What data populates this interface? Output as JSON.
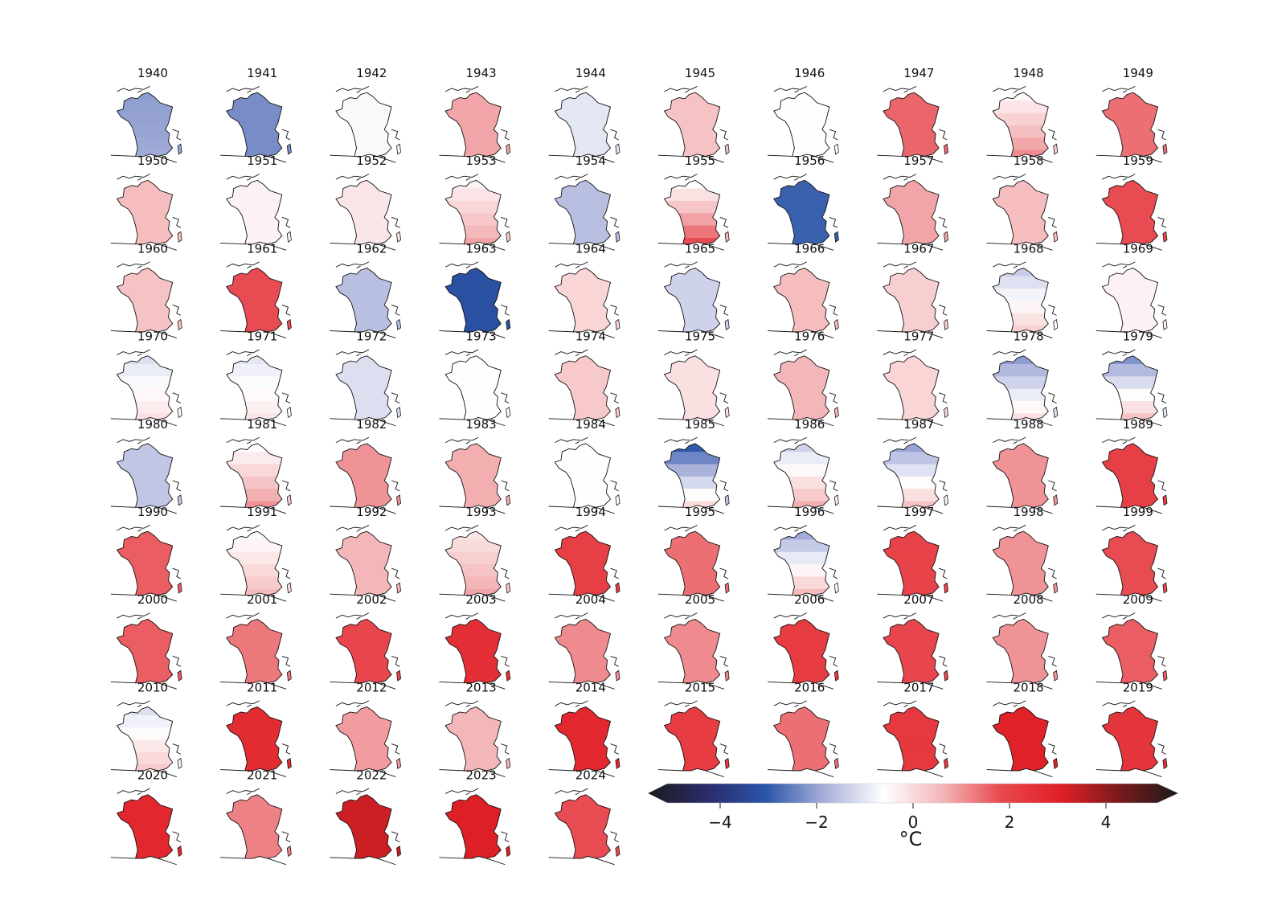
{
  "chart_data": {
    "type": "heatmap",
    "layout": "small-multiples maps of France, 10 columns",
    "years": [
      "1940",
      "1941",
      "1942",
      "1943",
      "1944",
      "1945",
      "1946",
      "1947",
      "1948",
      "1949",
      "1950",
      "1951",
      "1952",
      "1953",
      "1954",
      "1955",
      "1956",
      "1957",
      "1958",
      "1959",
      "1960",
      "1961",
      "1962",
      "1963",
      "1964",
      "1965",
      "1966",
      "1967",
      "1968",
      "1969",
      "1970",
      "1971",
      "1972",
      "1973",
      "1974",
      "1975",
      "1976",
      "1977",
      "1978",
      "1979",
      "1980",
      "1981",
      "1982",
      "1983",
      "1984",
      "1985",
      "1986",
      "1987",
      "1988",
      "1989",
      "1990",
      "1991",
      "1992",
      "1993",
      "1994",
      "1995",
      "1996",
      "1997",
      "1998",
      "1999",
      "2000",
      "2001",
      "2002",
      "2003",
      "2004",
      "2005",
      "2006",
      "2007",
      "2008",
      "2009",
      "2010",
      "2011",
      "2012",
      "2013",
      "2014",
      "2015",
      "2016",
      "2017",
      "2018",
      "2019",
      "2020",
      "2021",
      "2022",
      "2023",
      "2024"
    ],
    "mean_anomaly": [
      -2.0,
      -2.3,
      -0.7,
      0.8,
      -1.0,
      0.4,
      -0.6,
      1.5,
      0.3,
      1.4,
      0.5,
      -0.4,
      -0.2,
      0.2,
      -1.6,
      0.6,
      -2.9,
      0.8,
      0.5,
      1.8,
      0.4,
      1.8,
      -1.6,
      -3.2,
      0.1,
      -1.3,
      0.5,
      0.2,
      -0.6,
      -0.4,
      -0.6,
      -0.6,
      -1.1,
      -0.6,
      0.3,
      -0.1,
      0.6,
      0.1,
      -1.1,
      -0.9,
      -1.5,
      0.2,
      1.0,
      0.7,
      -0.6,
      -1.5,
      -0.3,
      -0.8,
      1.0,
      2.1,
      1.6,
      -0.1,
      0.6,
      0.3,
      2.1,
      1.4,
      -0.7,
      2.0,
      1.0,
      1.8,
      1.6,
      1.3,
      1.9,
      2.6,
      1.1,
      1.1,
      2.2,
      1.9,
      1.0,
      1.6,
      -0.4,
      2.7,
      0.9,
      0.6,
      2.8,
      2.2,
      1.4,
      2.3,
      3.0,
      2.4,
      2.8,
      1.2,
      3.3,
      3.1,
      1.8
    ],
    "north_south_gradient": [
      0.1,
      0,
      0,
      0,
      0,
      0,
      0,
      0,
      0.8,
      0,
      0,
      0,
      0,
      0.6,
      0,
      1.2,
      0,
      0,
      0,
      0,
      0,
      0,
      0,
      0,
      0,
      0,
      0,
      0,
      0.8,
      0,
      0.5,
      0.4,
      0,
      0,
      0,
      0,
      0,
      0,
      1.0,
      1.3,
      0,
      0.8,
      0,
      0,
      0,
      1.5,
      1.0,
      1.2,
      0,
      0,
      0,
      0.6,
      0,
      0.5,
      0,
      0,
      1.2,
      0,
      0,
      0,
      0,
      0,
      0,
      0,
      0,
      0,
      0,
      0,
      0,
      0,
      0.7,
      0,
      0,
      0,
      0,
      0,
      0,
      0,
      0,
      0,
      0,
      0,
      0,
      0,
      0
    ],
    "colorbar": {
      "label": "°C",
      "ticks": [
        "−4",
        "−2",
        "0",
        "2",
        "4"
      ],
      "tick_values": [
        -4,
        -2,
        0,
        2,
        4
      ],
      "range": [
        -5.5,
        5.5
      ],
      "extend": "both",
      "colormap": "diverging blue-white-red",
      "stops": [
        "#1b1b1b",
        "#2b2b6b",
        "#2a55a8",
        "#a8b0da",
        "#ffffff",
        "#f4b6b8",
        "#e8484e",
        "#e02026",
        "#7a1a1c",
        "#1b1b1b"
      ]
    }
  }
}
